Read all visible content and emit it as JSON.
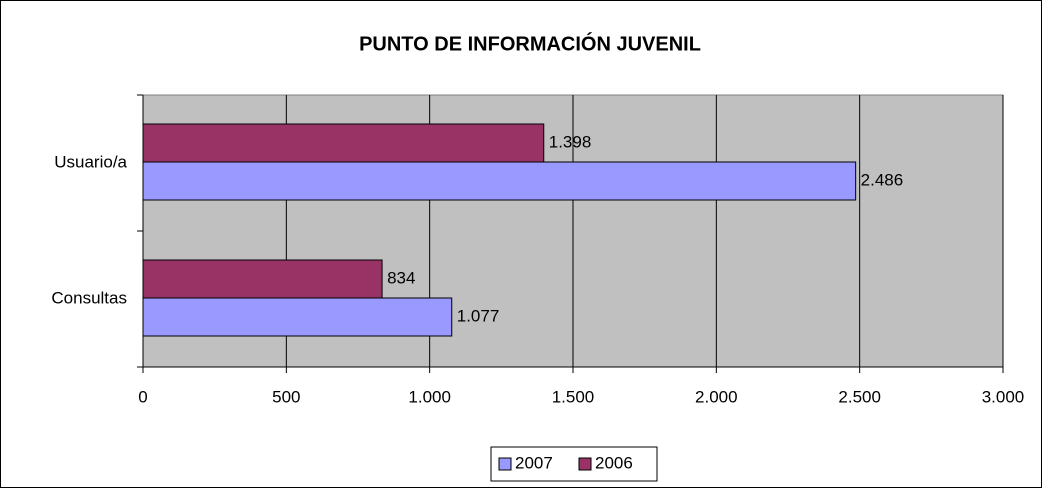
{
  "chart_data": {
    "type": "bar",
    "orientation": "horizontal",
    "title": "PUNTO DE INFORMACIÓN JUVENIL",
    "categories": [
      "Usuario/a",
      "Consultas"
    ],
    "series": [
      {
        "name": "2007",
        "color": "#9999ff",
        "values": [
          2486,
          1077
        ],
        "value_labels": [
          "2.486",
          "1.077"
        ]
      },
      {
        "name": "2006",
        "color": "#993366",
        "values": [
          1398,
          834
        ],
        "value_labels": [
          "1.398",
          "834"
        ]
      }
    ],
    "xlim": [
      0,
      3000
    ],
    "xticks": [
      0,
      500,
      {
        "value": 1000,
        "label": "1.000"
      },
      {
        "value": 1500,
        "label": "1.500"
      },
      {
        "value": 2000,
        "label": "2.000"
      },
      {
        "value": 2500,
        "label": "2.500"
      },
      {
        "value": 3000,
        "label": "3.000"
      }
    ],
    "grid": true,
    "legend": "bottom"
  }
}
